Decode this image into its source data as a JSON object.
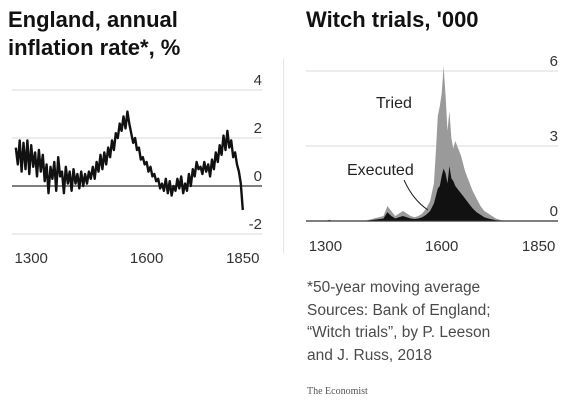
{
  "chart_data": [
    {
      "type": "line",
      "title": "England, annual inflation rate*, %",
      "ylim": [
        -2,
        4
      ],
      "xlim": [
        1250,
        1900
      ],
      "y_ticks": [
        "4",
        "2",
        "0",
        "-2"
      ],
      "y_tick_values": [
        4,
        2,
        0,
        -2
      ],
      "x_ticks": [
        "1300",
        "1600",
        "1850"
      ],
      "x_tick_values": [
        1300,
        1600,
        1850
      ],
      "grid": true,
      "series": [
        {
          "x": [
            1260,
            1265,
            1270,
            1275,
            1280,
            1285,
            1290,
            1295,
            1300,
            1305,
            1310,
            1315,
            1320,
            1325,
            1330,
            1335,
            1340,
            1345,
            1350,
            1355,
            1360,
            1365,
            1370,
            1375,
            1380,
            1385,
            1390,
            1395,
            1400,
            1405,
            1410,
            1415,
            1420,
            1425,
            1430,
            1435,
            1440,
            1445,
            1450,
            1455,
            1460,
            1465,
            1470,
            1475,
            1480,
            1485,
            1490,
            1495,
            1500,
            1505,
            1510,
            1515,
            1520,
            1525,
            1530,
            1535,
            1540,
            1545,
            1550,
            1555,
            1560,
            1565,
            1570,
            1575,
            1580,
            1585,
            1590,
            1595,
            1600,
            1605,
            1610,
            1615,
            1620,
            1625,
            1630,
            1635,
            1640,
            1645,
            1650,
            1655,
            1660,
            1665,
            1670,
            1675,
            1680,
            1685,
            1690,
            1695,
            1700,
            1705,
            1710,
            1715,
            1720,
            1725,
            1730,
            1735,
            1740,
            1745,
            1750,
            1755,
            1760,
            1765,
            1770,
            1775,
            1780,
            1785,
            1790,
            1795,
            1800,
            1805,
            1810,
            1815,
            1820,
            1825,
            1830,
            1835,
            1840,
            1845,
            1850
          ],
          "y": [
            1.6,
            0.9,
            1.9,
            0.6,
            1.8,
            0.7,
            1.9,
            0.5,
            1.7,
            0.8,
            1.4,
            0.4,
            1.5,
            0.6,
            1.3,
            0.2,
            0.9,
            -0.3,
            0.8,
            0.3,
            1.0,
            -0.2,
            1.2,
            0.4,
            0.6,
            -0.3,
            0.8,
            0.1,
            0.6,
            -0.2,
            0.7,
            0.1,
            0.5,
            -0.1,
            0.6,
            0.0,
            0.5,
            0.1,
            0.6,
            0.3,
            0.8,
            0.3,
            1.0,
            0.6,
            1.3,
            0.7,
            1.4,
            0.9,
            1.6,
            1.2,
            1.9,
            1.5,
            2.2,
            2.0,
            2.6,
            2.3,
            2.9,
            2.4,
            3.1,
            2.6,
            2.2,
            1.8,
            2.0,
            1.5,
            1.6,
            1.1,
            1.2,
            0.9,
            1.0,
            0.6,
            0.8,
            0.4,
            0.5,
            0.2,
            0.3,
            -0.1,
            0.1,
            -0.2,
            0.3,
            -0.3,
            0.2,
            -0.4,
            0.0,
            -0.2,
            0.3,
            -0.1,
            0.4,
            -0.3,
            0.1,
            -0.2,
            0.5,
            0.0,
            0.7,
            0.4,
            1.0,
            0.7,
            0.8,
            0.5,
            1.0,
            0.6,
            0.9,
            0.4,
            1.1,
            0.7,
            1.4,
            1.0,
            1.7,
            1.3,
            2.1,
            1.5,
            2.3,
            1.6,
            1.9,
            1.2,
            1.4,
            0.9,
            0.6,
            0.1,
            -1.0
          ]
        }
      ]
    },
    {
      "type": "area",
      "title": "Witch trials, '000",
      "ylim": [
        0,
        6
      ],
      "xlim": [
        1250,
        1900
      ],
      "y_ticks": [
        "6",
        "3",
        "0"
      ],
      "y_tick_values": [
        6,
        3,
        0
      ],
      "x_ticks": [
        "1300",
        "1600",
        "1850"
      ],
      "x_tick_values": [
        1300,
        1600,
        1850
      ],
      "grid": true,
      "series": [
        {
          "name": "Tried",
          "color": "#9a9a9a",
          "x": [
            1250,
            1300,
            1310,
            1320,
            1400,
            1450,
            1460,
            1470,
            1480,
            1490,
            1500,
            1510,
            1520,
            1530,
            1540,
            1550,
            1560,
            1570,
            1580,
            1585,
            1590,
            1595,
            1600,
            1605,
            1610,
            1615,
            1620,
            1625,
            1630,
            1635,
            1640,
            1650,
            1660,
            1670,
            1680,
            1690,
            1700,
            1710,
            1720,
            1730,
            1740,
            1750,
            1760,
            1780,
            1800,
            1900
          ],
          "y": [
            0,
            0,
            0.05,
            0,
            0,
            0.2,
            0.6,
            0.4,
            0.2,
            0.3,
            0.4,
            0.3,
            0.2,
            0.15,
            0.2,
            0.3,
            0.5,
            0.8,
            1.5,
            2.8,
            4.2,
            4.6,
            5.1,
            6.2,
            5.0,
            3.6,
            4.4,
            3.3,
            2.9,
            3.2,
            3.0,
            2.6,
            2.0,
            1.6,
            1.2,
            0.9,
            0.6,
            0.4,
            0.3,
            0.2,
            0.1,
            0.05,
            0,
            0,
            0,
            0
          ]
        },
        {
          "name": "Executed",
          "color": "#111111",
          "x": [
            1250,
            1300,
            1310,
            1320,
            1400,
            1450,
            1460,
            1470,
            1480,
            1490,
            1500,
            1510,
            1520,
            1530,
            1540,
            1550,
            1560,
            1570,
            1580,
            1585,
            1590,
            1595,
            1600,
            1605,
            1610,
            1615,
            1620,
            1625,
            1630,
            1635,
            1640,
            1650,
            1660,
            1670,
            1680,
            1690,
            1700,
            1710,
            1720,
            1740,
            1760,
            1900
          ],
          "y": [
            0,
            0,
            0.03,
            0,
            0,
            0.1,
            0.35,
            0.2,
            0.1,
            0.15,
            0.2,
            0.15,
            0.1,
            0.08,
            0.1,
            0.15,
            0.25,
            0.4,
            0.7,
            1.0,
            1.3,
            1.4,
            1.8,
            2.1,
            1.9,
            1.5,
            2.2,
            1.7,
            1.6,
            1.4,
            1.3,
            1.1,
            0.9,
            0.7,
            0.5,
            0.35,
            0.25,
            0.15,
            0.1,
            0.03,
            0,
            0
          ]
        }
      ],
      "annotations": [
        {
          "text": "Tried",
          "series": "Tried"
        },
        {
          "text": "Executed",
          "series": "Executed"
        }
      ]
    }
  ],
  "footnotes": [
    "*50-year moving average",
    "Sources: Bank of England;",
    "“Witch trials”,  by P. Leeson",
    "and J. Russ, 2018"
  ],
  "brand": "The Economist",
  "colors": {
    "line": "#111111",
    "gridline": "#d9d9d9",
    "zero_line": "#333333",
    "tried_area": "#9a9a9a",
    "executed_area": "#111111",
    "tick_label": "#333333"
  }
}
